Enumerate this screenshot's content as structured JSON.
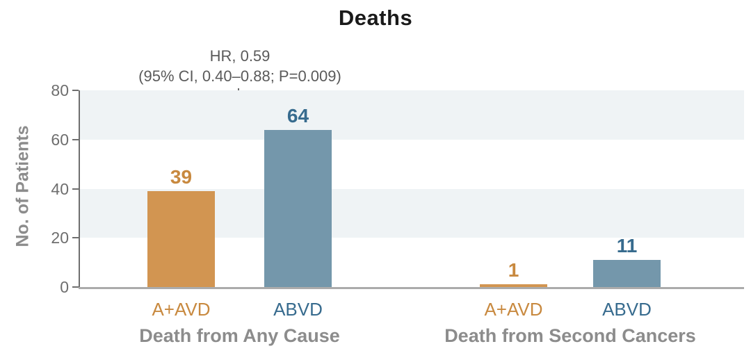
{
  "figure": {
    "annotation": {
      "line1": "HR, 0.59",
      "line2": "(95% CI, 0.40–0.88; P=0.009)"
    }
  },
  "colors": {
    "title_text": "#1A1A1A",
    "gray_label": "#8C8C8C",
    "tick_label": "#6E6E6E",
    "annotation_text": "#5A5A5A",
    "stripe_band": "#EFF3F5",
    "axis_line": "#6E6E6E",
    "baseline": "#ABABAB",
    "bracket": "#6B6B6B",
    "aavd_bar": "#D29551",
    "aavd_text": "#C8893F",
    "abvd_bar": "#7497AB",
    "abvd_text": "#376B8E"
  },
  "chart_data": {
    "type": "bar",
    "title": "Deaths",
    "xlabel": "",
    "ylabel": "No. of Patients",
    "ylim": [
      0,
      80
    ],
    "yticks": [
      0,
      20,
      40,
      60,
      80
    ],
    "shaded_bands": [
      [
        20,
        40
      ],
      [
        60,
        80
      ]
    ],
    "grid": false,
    "legend_position": "none",
    "series_styles": {
      "A+AVD": {
        "bar": "#D29551",
        "text": "#C8893F"
      },
      "ABVD": {
        "bar": "#7497AB",
        "text": "#376B8E"
      }
    },
    "groups": [
      {
        "label": "Death from Any Cause",
        "annotation": "HR, 0.59 (95% CI, 0.40–0.88; P=0.009)",
        "bars": [
          {
            "series": "A+AVD",
            "value": 39
          },
          {
            "series": "ABVD",
            "value": 64
          }
        ]
      },
      {
        "label": "Death from Second Cancers",
        "annotation": "",
        "bars": [
          {
            "series": "A+AVD",
            "value": 1
          },
          {
            "series": "ABVD",
            "value": 11
          }
        ]
      }
    ]
  }
}
